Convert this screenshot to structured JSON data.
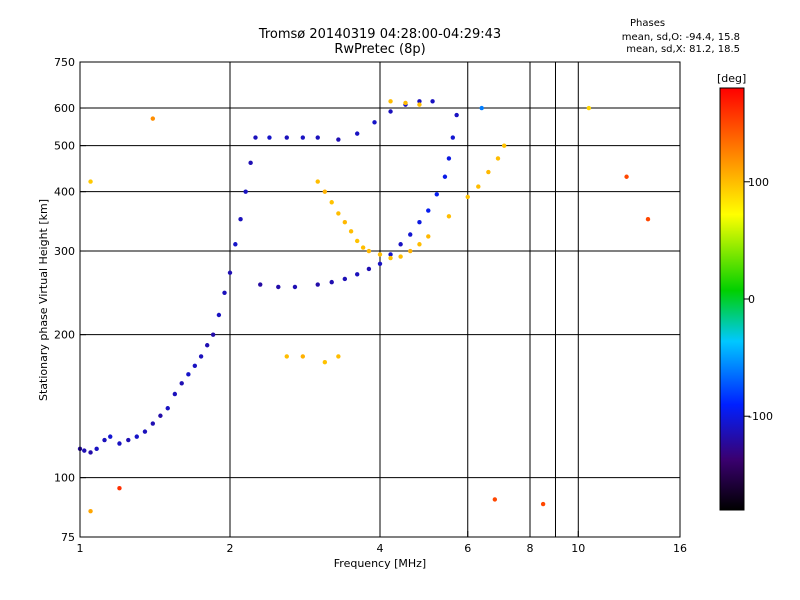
{
  "header": {
    "title_line1": "Tromsø 20140319 04:28:00-04:29:43",
    "title_line2": "RwPretec (8p)"
  },
  "phase_box": {
    "heading": "Phases",
    "line_o": "mean, sd,O: -94.4, 15.8",
    "line_x": "mean, sd,X:  81.2, 18.5"
  },
  "chart_data": {
    "type": "scatter",
    "title": "Tromsø 20140319 04:28:00-04:29:43",
    "subtitle": "RwPretec (8p)",
    "xlabel": "Frequency [MHz]",
    "ylabel": "Stationary phase Virtual Height [km]",
    "x_scale": "log",
    "y_scale": "log",
    "xlim": [
      1,
      16
    ],
    "ylim": [
      75,
      750
    ],
    "x_ticks": [
      1,
      2,
      4,
      6,
      8,
      10,
      16
    ],
    "x_tick_labels": [
      "1",
      "2",
      "4",
      "6",
      "8",
      "10",
      "16"
    ],
    "y_ticks": [
      75,
      100,
      200,
      300,
      400,
      500,
      600,
      750
    ],
    "y_tick_labels": [
      "75",
      "100",
      "200",
      "300",
      "400",
      "500",
      "600",
      "750"
    ],
    "grid": true,
    "vertical_grid_x": [
      2,
      4,
      6,
      8,
      9,
      10
    ],
    "horizontal_grid_y": [
      100,
      200,
      300,
      400,
      500,
      600
    ],
    "colorbar": {
      "label": "[deg]",
      "range": [
        -180,
        180
      ],
      "ticks": [
        -100,
        0,
        100
      ],
      "tick_labels": [
        "-100",
        "0",
        "100"
      ],
      "colormap": "rainbow"
    },
    "series": [
      {
        "points": [
          [
            1.0,
            115,
            -120
          ],
          [
            1.02,
            114,
            -115
          ],
          [
            1.05,
            113,
            -118
          ],
          [
            1.08,
            115,
            -110
          ],
          [
            1.12,
            120,
            -112
          ],
          [
            1.15,
            122,
            -105
          ],
          [
            1.2,
            118,
            -110
          ],
          [
            1.25,
            120,
            -115
          ],
          [
            1.3,
            122,
            -108
          ],
          [
            1.35,
            125,
            -112
          ],
          [
            1.4,
            130,
            -115
          ],
          [
            1.45,
            135,
            -118
          ],
          [
            1.5,
            140,
            -110
          ],
          [
            1.55,
            150,
            -112
          ],
          [
            1.6,
            158,
            -115
          ],
          [
            1.65,
            165,
            -108
          ],
          [
            1.7,
            172,
            -110
          ],
          [
            1.75,
            180,
            -112
          ],
          [
            1.8,
            190,
            -115
          ],
          [
            1.85,
            200,
            -118
          ],
          [
            1.9,
            220,
            -110
          ],
          [
            1.95,
            245,
            -112
          ],
          [
            2.0,
            270,
            -115
          ],
          [
            2.05,
            310,
            -108
          ],
          [
            2.1,
            350,
            -112
          ],
          [
            2.15,
            400,
            -110
          ],
          [
            2.2,
            460,
            -115
          ],
          [
            2.25,
            520,
            -112
          ],
          [
            2.4,
            520,
            -108
          ],
          [
            2.6,
            520,
            -112
          ],
          [
            2.8,
            520,
            -110
          ],
          [
            3.0,
            520,
            -112
          ],
          [
            3.3,
            515,
            -115
          ],
          [
            3.6,
            530,
            -110
          ],
          [
            3.9,
            560,
            -108
          ],
          [
            4.2,
            590,
            -112
          ],
          [
            4.5,
            610,
            -110
          ],
          [
            4.8,
            620,
            -112
          ],
          [
            5.1,
            620,
            -110
          ]
        ]
      },
      {
        "points": [
          [
            2.3,
            255,
            -120
          ],
          [
            2.5,
            252,
            -118
          ],
          [
            2.7,
            252,
            -115
          ],
          [
            3.0,
            255,
            -118
          ],
          [
            3.2,
            258,
            -116
          ],
          [
            3.4,
            262,
            -114
          ],
          [
            3.6,
            268,
            -112
          ],
          [
            3.8,
            275,
            -115
          ],
          [
            4.0,
            282,
            -110
          ],
          [
            4.2,
            295,
            -108
          ],
          [
            4.4,
            310,
            -110
          ],
          [
            4.6,
            325,
            -105
          ],
          [
            4.8,
            345,
            -100
          ],
          [
            5.0,
            365,
            -95
          ],
          [
            5.2,
            395,
            -95
          ],
          [
            5.4,
            430,
            -98
          ],
          [
            5.5,
            470,
            -100
          ],
          [
            5.6,
            520,
            -105
          ],
          [
            5.7,
            580,
            -110
          ]
        ]
      },
      {
        "points": [
          [
            3.0,
            420,
            100
          ],
          [
            3.1,
            400,
            105
          ],
          [
            3.2,
            380,
            98
          ],
          [
            3.3,
            360,
            100
          ],
          [
            3.4,
            345,
            102
          ],
          [
            3.5,
            330,
            100
          ],
          [
            3.6,
            315,
            98
          ],
          [
            3.7,
            305,
            100
          ],
          [
            3.8,
            300,
            102
          ],
          [
            4.0,
            295,
            100
          ],
          [
            4.2,
            290,
            98
          ],
          [
            4.4,
            292,
            100
          ],
          [
            4.6,
            300,
            105
          ],
          [
            4.8,
            310,
            100
          ],
          [
            5.0,
            322,
            102
          ],
          [
            5.5,
            355,
            100
          ],
          [
            6.0,
            390,
            98
          ],
          [
            6.3,
            410,
            100
          ],
          [
            6.6,
            440,
            102
          ],
          [
            6.9,
            470,
            100
          ],
          [
            7.1,
            500,
            98
          ],
          [
            4.2,
            620,
            100
          ],
          [
            4.5,
            615,
            102
          ],
          [
            4.8,
            610,
            100
          ]
        ]
      },
      {
        "points": [
          [
            1.05,
            420,
            95
          ],
          [
            1.05,
            85,
            110
          ],
          [
            1.4,
            570,
            120
          ],
          [
            2.6,
            180,
            100
          ],
          [
            2.8,
            180,
            105
          ],
          [
            3.1,
            175,
            98
          ],
          [
            3.3,
            180,
            100
          ],
          [
            6.8,
            90,
            150
          ],
          [
            8.5,
            88,
            150
          ],
          [
            12.5,
            430,
            150
          ],
          [
            13.8,
            350,
            150
          ],
          [
            1.2,
            95,
            160
          ],
          [
            6.4,
            600,
            -60
          ],
          [
            10.5,
            600,
            90
          ]
        ]
      }
    ]
  }
}
